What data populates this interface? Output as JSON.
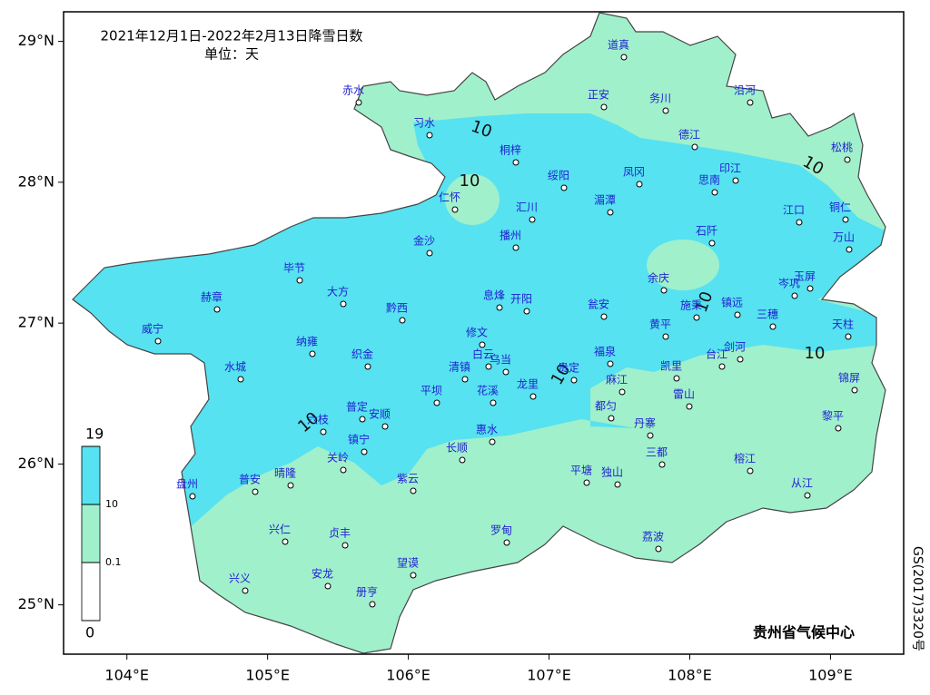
{
  "map": {
    "title": "2021年12月1日-2022年2月13日降雪日数",
    "unit": "单位：天",
    "credit": "贵州省气候中心",
    "approval_number": "GS(2017)3320号",
    "xlim": [
      103.55,
      109.52
    ],
    "ylim": [
      24.65,
      29.21
    ],
    "lon_ticks": [
      {
        "value": 104,
        "label": "104°E"
      },
      {
        "value": 105,
        "label": "105°E"
      },
      {
        "value": 106,
        "label": "106°E"
      },
      {
        "value": 107,
        "label": "107°E"
      },
      {
        "value": 108,
        "label": "108°E"
      },
      {
        "value": 109,
        "label": "109°E"
      }
    ],
    "lat_ticks": [
      {
        "value": 25,
        "label": "25°N"
      },
      {
        "value": 26,
        "label": "26°N"
      },
      {
        "value": 27,
        "label": "27°N"
      },
      {
        "value": 28,
        "label": "28°N"
      },
      {
        "value": 29,
        "label": "29°N"
      }
    ],
    "legend": {
      "ticks": [
        19,
        10,
        0.1,
        0
      ],
      "colors": [
        "#56e2f0",
        "#a0f0cc",
        "#ffffff"
      ]
    },
    "contour_labels": [
      10,
      10,
      10,
      10,
      10,
      10,
      10
    ],
    "stations": [
      "道真",
      "赤水",
      "正安",
      "务川",
      "沿河",
      "习水",
      "德江",
      "桐梓",
      "松桃",
      "绥阳",
      "凤冈",
      "印江",
      "思南",
      "仁怀",
      "汇川",
      "湄潭",
      "江口",
      "铜仁",
      "石阡",
      "万山",
      "金沙",
      "播州",
      "毕节",
      "余庆",
      "玉屏",
      "岑巩",
      "赫章",
      "大方",
      "息烽",
      "开阳",
      "瓮安",
      "施秉",
      "镇远",
      "三穗",
      "黔西",
      "黄平",
      "天柱",
      "威宁",
      "修文",
      "纳雍",
      "织金",
      "白云",
      "乌当",
      "福泉",
      "剑河",
      "台江",
      "水城",
      "清镇",
      "锦屏",
      "贵定",
      "凯里",
      "龙里",
      "花溪",
      "麻江",
      "平坝",
      "雷山",
      "都匀",
      "普定",
      "安顺",
      "六枝",
      "黎平",
      "丹寨",
      "惠水",
      "镇宁",
      "关岭",
      "长顺",
      "三都",
      "平塘",
      "独山",
      "榕江",
      "盘州",
      "普安",
      "晴隆",
      "紫云",
      "从江",
      "兴仁",
      "贞丰",
      "罗甸",
      "荔波",
      "望谟",
      "兴义",
      "安龙",
      "册亨"
    ]
  }
}
